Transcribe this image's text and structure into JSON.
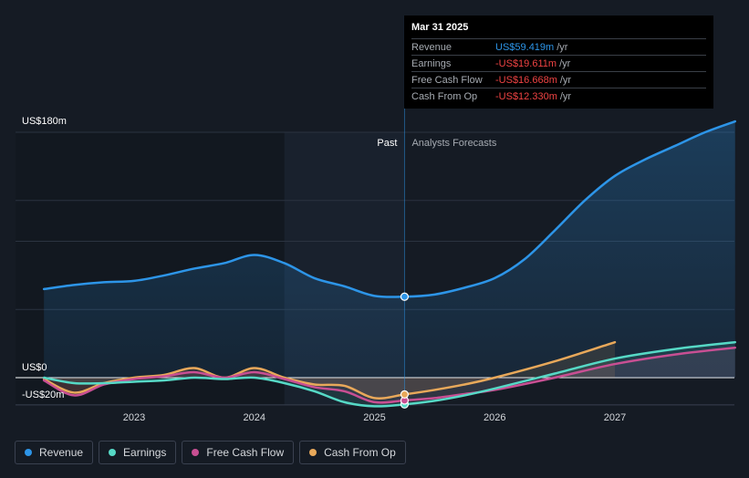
{
  "chart_data": {
    "type": "line",
    "title": "",
    "y_labels": {
      "top": "US$180m",
      "zero": "US$0",
      "bottom": "-US$20m"
    },
    "ylim": [
      -20,
      180
    ],
    "x_ticks": [
      "2023",
      "2024",
      "2025",
      "2026",
      "2027"
    ],
    "x_tick_values": [
      2023.0,
      2024.0,
      2025.0,
      2026.0,
      2027.0
    ],
    "past_label": "Past",
    "forecast_label": "Analysts Forecasts",
    "divider_x": 2025.25,
    "forecast_shade_start": 2024.25,
    "series": [
      {
        "name": "Revenue",
        "color": "#2d95e8",
        "points": [
          [
            2022.25,
            65
          ],
          [
            2022.5,
            68
          ],
          [
            2022.75,
            70
          ],
          [
            2023.0,
            71
          ],
          [
            2023.25,
            75
          ],
          [
            2023.5,
            80
          ],
          [
            2023.75,
            84
          ],
          [
            2024.0,
            90
          ],
          [
            2024.25,
            84
          ],
          [
            2024.5,
            73
          ],
          [
            2024.75,
            67
          ],
          [
            2025.0,
            60
          ],
          [
            2025.25,
            59.4
          ],
          [
            2025.5,
            61
          ],
          [
            2025.75,
            66
          ],
          [
            2026.0,
            73
          ],
          [
            2026.25,
            87
          ],
          [
            2026.5,
            108
          ],
          [
            2026.75,
            130
          ],
          [
            2027.0,
            148
          ],
          [
            2027.25,
            160
          ],
          [
            2027.5,
            170
          ],
          [
            2027.75,
            180
          ],
          [
            2028.0,
            188
          ]
        ]
      },
      {
        "name": "Earnings",
        "color": "#56d9c6",
        "points": [
          [
            2022.25,
            0
          ],
          [
            2022.5,
            -4
          ],
          [
            2022.75,
            -4
          ],
          [
            2023.0,
            -3
          ],
          [
            2023.25,
            -2
          ],
          [
            2023.5,
            0
          ],
          [
            2023.75,
            -1
          ],
          [
            2024.0,
            0
          ],
          [
            2024.25,
            -4
          ],
          [
            2024.5,
            -10
          ],
          [
            2024.75,
            -18
          ],
          [
            2025.0,
            -21
          ],
          [
            2025.25,
            -19.6
          ],
          [
            2025.5,
            -17
          ],
          [
            2025.75,
            -13
          ],
          [
            2026.0,
            -8
          ],
          [
            2026.5,
            3
          ],
          [
            2027.0,
            14
          ],
          [
            2027.5,
            21
          ],
          [
            2028.0,
            26
          ]
        ]
      },
      {
        "name": "Free Cash Flow",
        "color": "#c84f93",
        "points": [
          [
            2022.25,
            -2
          ],
          [
            2022.5,
            -13
          ],
          [
            2022.75,
            -5
          ],
          [
            2023.0,
            -1
          ],
          [
            2023.25,
            1
          ],
          [
            2023.5,
            4
          ],
          [
            2023.75,
            0
          ],
          [
            2024.0,
            4
          ],
          [
            2024.25,
            -1
          ],
          [
            2024.5,
            -7
          ],
          [
            2024.75,
            -10
          ],
          [
            2025.0,
            -18
          ],
          [
            2025.25,
            -16.7
          ],
          [
            2025.5,
            -15
          ],
          [
            2025.75,
            -12
          ],
          [
            2026.0,
            -9
          ],
          [
            2026.5,
            0
          ],
          [
            2027.0,
            10
          ],
          [
            2027.5,
            17
          ],
          [
            2028.0,
            22
          ]
        ]
      },
      {
        "name": "Cash From Op",
        "color": "#e8a85a",
        "points": [
          [
            2022.25,
            -1
          ],
          [
            2022.5,
            -11
          ],
          [
            2022.75,
            -4
          ],
          [
            2023.0,
            0
          ],
          [
            2023.25,
            2
          ],
          [
            2023.5,
            7
          ],
          [
            2023.75,
            0
          ],
          [
            2024.0,
            7
          ],
          [
            2024.25,
            0
          ],
          [
            2024.5,
            -5
          ],
          [
            2024.75,
            -6
          ],
          [
            2025.0,
            -15
          ],
          [
            2025.25,
            -12.3
          ],
          [
            2025.5,
            -9
          ],
          [
            2025.75,
            -5
          ],
          [
            2026.0,
            0
          ],
          [
            2026.5,
            12
          ],
          [
            2027.0,
            26
          ]
        ]
      }
    ]
  },
  "tooltip": {
    "date": "Mar 31 2025",
    "rows": [
      {
        "label": "Revenue",
        "value": "US$59.419m",
        "unit": "/yr",
        "sign": "pos"
      },
      {
        "label": "Earnings",
        "value": "-US$19.611m",
        "unit": "/yr",
        "sign": "neg"
      },
      {
        "label": "Free Cash Flow",
        "value": "-US$16.668m",
        "unit": "/yr",
        "sign": "neg"
      },
      {
        "label": "Cash From Op",
        "value": "-US$12.330m",
        "unit": "/yr",
        "sign": "neg"
      }
    ]
  },
  "legend": [
    {
      "label": "Revenue",
      "color": "#2d95e8"
    },
    {
      "label": "Earnings",
      "color": "#56d9c6"
    },
    {
      "label": "Free Cash Flow",
      "color": "#c84f93"
    },
    {
      "label": "Cash From Op",
      "color": "#e8a85a"
    }
  ]
}
